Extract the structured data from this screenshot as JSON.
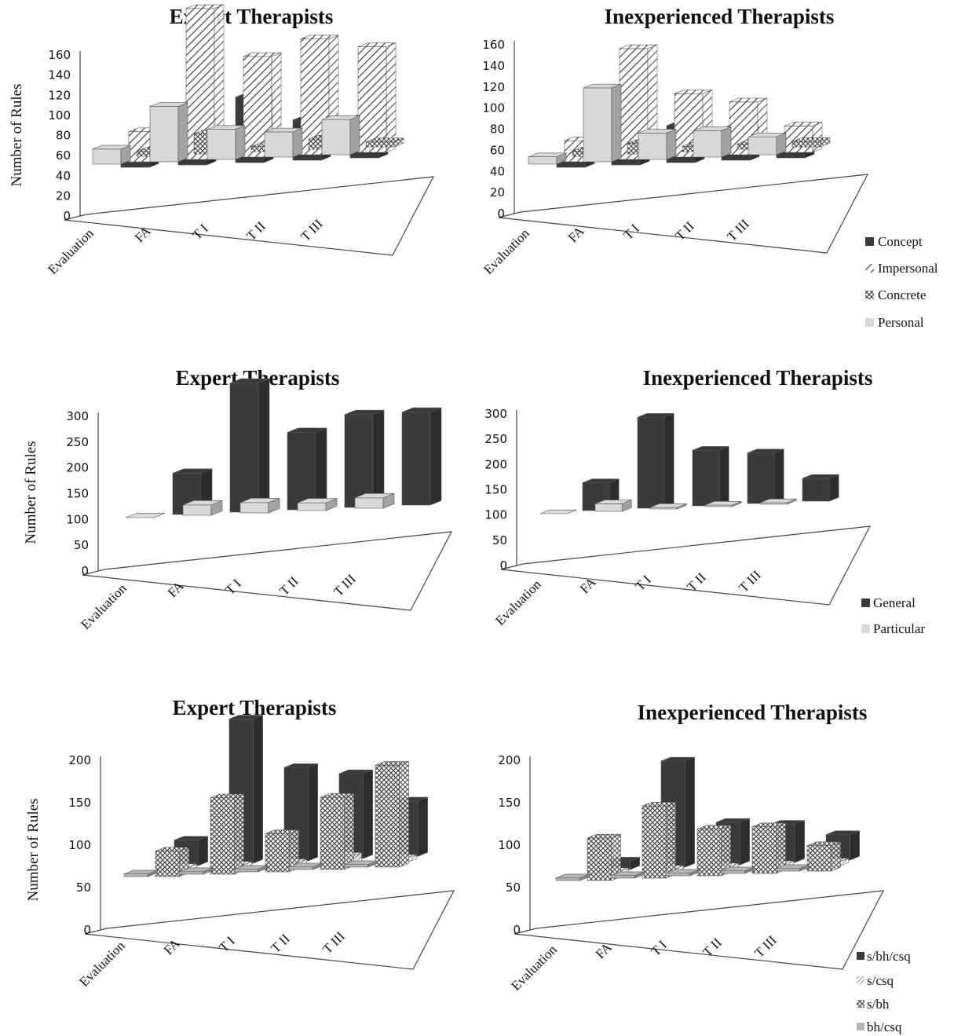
{
  "chart_data": [
    {
      "type": "bar",
      "title": "Expert Therapists",
      "ylabel": "Number of Rules",
      "ylim": [
        0,
        160
      ],
      "yticks": [
        "0",
        "20",
        "40",
        "60",
        "80",
        "100",
        "120",
        "140",
        "160"
      ],
      "categories": [
        "Evaluation",
        "FA",
        "T I",
        "T II",
        "T III"
      ],
      "series": [
        {
          "name": "Concept",
          "values": [
            5,
            45,
            65,
            40,
            40
          ]
        },
        {
          "name": "Impersonal",
          "values": [
            30,
            150,
            100,
            115,
            105
          ]
        },
        {
          "name": "Concrete",
          "values": [
            5,
            20,
            5,
            10,
            5
          ]
        },
        {
          "name": "Personal",
          "values": [
            15,
            55,
            30,
            25,
            35
          ]
        }
      ]
    },
    {
      "type": "bar",
      "title": "Inexperienced Therapists",
      "ylabel": "",
      "ylim": [
        0,
        160
      ],
      "yticks": [
        "0",
        "20",
        "40",
        "60",
        "80",
        "100",
        "120",
        "140",
        "160"
      ],
      "categories": [
        "Evaluation",
        "FA",
        "T I",
        "T II",
        "T III"
      ],
      "legend": "right",
      "series": [
        {
          "name": "Concept",
          "values": [
            10,
            15,
            35,
            30,
            10
          ]
        },
        {
          "name": "Impersonal",
          "values": [
            20,
            105,
            60,
            50,
            25
          ]
        },
        {
          "name": "Concrete",
          "values": [
            5,
            10,
            5,
            5,
            5
          ]
        },
        {
          "name": "Personal",
          "values": [
            7,
            70,
            25,
            25,
            17
          ]
        }
      ]
    },
    {
      "type": "bar",
      "title": "Expert Therapists",
      "ylabel": "Number of Rules",
      "ylim": [
        0,
        300
      ],
      "yticks": [
        "0",
        "50",
        "100",
        "150",
        "200",
        "250",
        "300"
      ],
      "categories": [
        "Evaluation",
        "FA",
        "T I",
        "T II",
        "T III"
      ],
      "series": [
        {
          "name": "General",
          "values": [
            80,
            250,
            150,
            180,
            180
          ]
        },
        {
          "name": "Particular",
          "values": [
            0,
            20,
            20,
            15,
            20
          ]
        }
      ]
    },
    {
      "type": "bar",
      "title": "Inexperienced Therapists",
      "ylabel": "",
      "ylim": [
        0,
        300
      ],
      "yticks": [
        "0",
        "50",
        "100",
        "150",
        "200",
        "250",
        "300"
      ],
      "categories": [
        "Evaluation",
        "FA",
        "T I",
        "T II",
        "T III"
      ],
      "legend": "right",
      "series": [
        {
          "name": "General",
          "values": [
            55,
            180,
            110,
            100,
            45
          ]
        },
        {
          "name": "Particular",
          "values": [
            0,
            15,
            3,
            3,
            3
          ]
        }
      ]
    },
    {
      "type": "bar",
      "title": "Expert Therapists",
      "ylabel": "Number of Rules",
      "ylim": [
        0,
        200
      ],
      "yticks": [
        "0",
        "50",
        "100",
        "150",
        "200"
      ],
      "categories": [
        "Evaluation",
        "FA",
        "T I",
        "T II",
        "T III"
      ],
      "series": [
        {
          "name": "s/bh/csq",
          "values": [
            30,
            170,
            110,
            100,
            65
          ]
        },
        {
          "name": "s/csq",
          "values": [
            5,
            5,
            5,
            10,
            5
          ]
        },
        {
          "name": "s/bh",
          "values": [
            30,
            90,
            45,
            85,
            120
          ]
        },
        {
          "name": "bh/csq",
          "values": [
            3,
            3,
            3,
            3,
            3
          ]
        }
      ]
    },
    {
      "type": "bar",
      "title": "Inexperienced Therapists",
      "ylabel": "",
      "ylim": [
        0,
        200
      ],
      "yticks": [
        "0",
        "50",
        "100",
        "150",
        "200"
      ],
      "categories": [
        "Evaluation",
        "FA",
        "T I",
        "T II",
        "T III"
      ],
      "legend": "right",
      "series": [
        {
          "name": "s/bh/csq",
          "values": [
            10,
            125,
            50,
            45,
            30
          ]
        },
        {
          "name": "s/csq",
          "values": [
            5,
            5,
            5,
            5,
            5
          ]
        },
        {
          "name": "s/bh",
          "values": [
            50,
            85,
            55,
            55,
            30
          ]
        },
        {
          "name": "bh/csq",
          "values": [
            3,
            3,
            3,
            3,
            3
          ]
        }
      ]
    }
  ],
  "legends": [
    [
      "Concept",
      "Impersonal",
      "Concrete",
      "Personal"
    ],
    [
      "General",
      "Particular"
    ],
    [
      "s/bh/csq",
      "s/csq",
      "s/bh",
      "bh/csq"
    ]
  ],
  "colors": {
    "dark": "#3a3a3a",
    "light": "#d8d8d8",
    "particular": "#d9d9d9",
    "tiny": "#b5b5b5",
    "axis": "#444444"
  }
}
